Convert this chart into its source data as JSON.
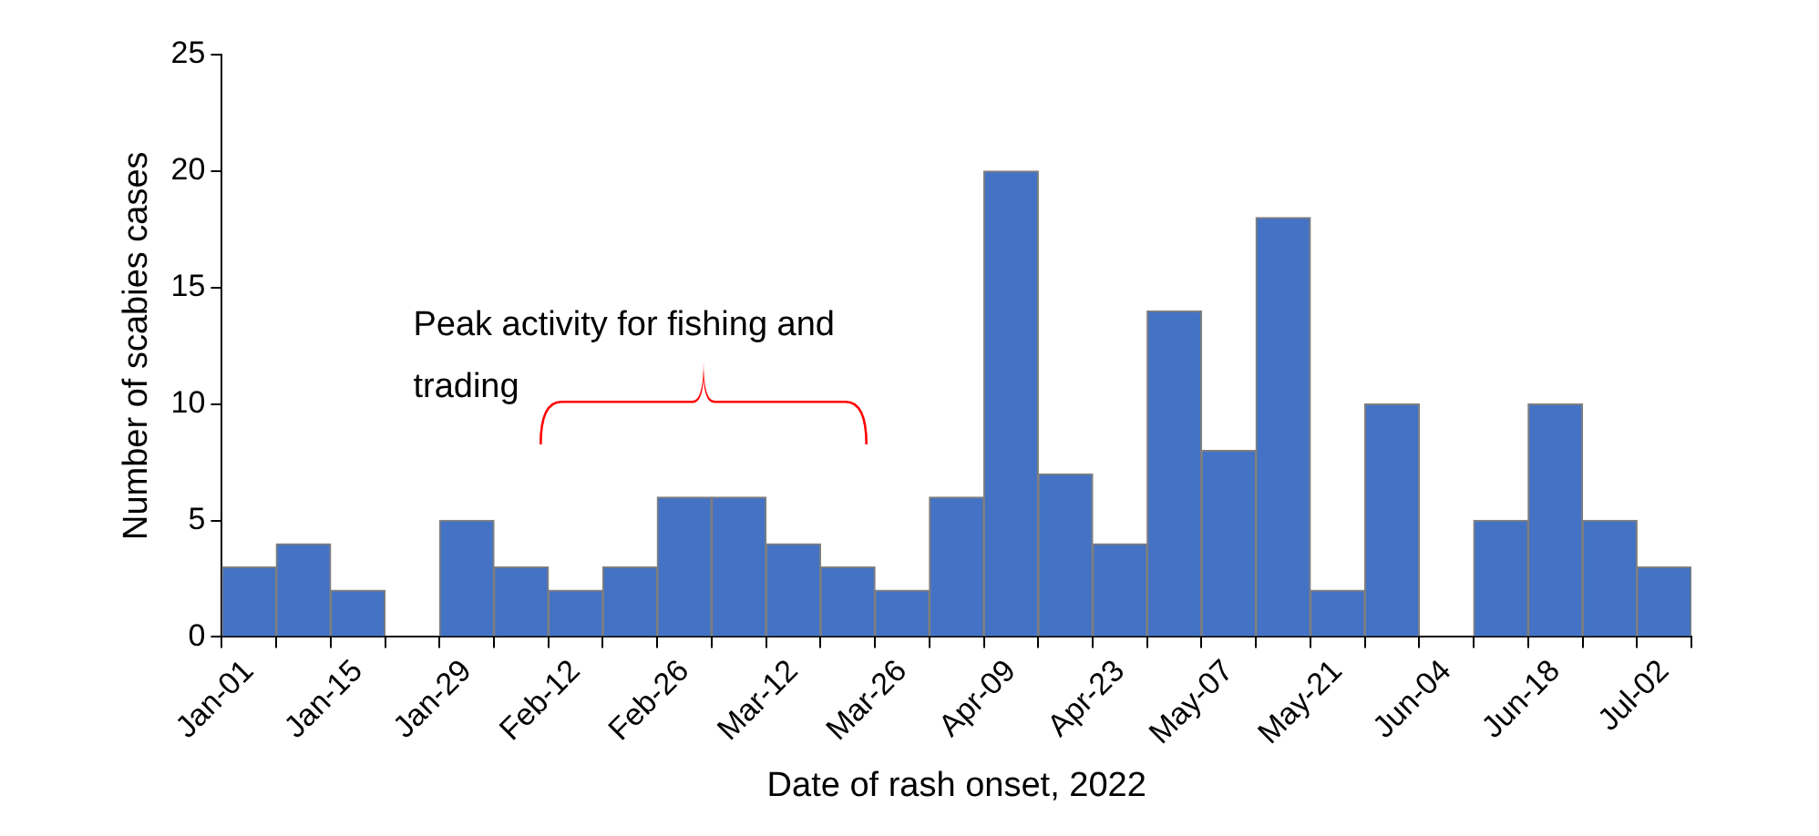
{
  "chart_data": {
    "type": "bar",
    "xlabel": "Date of rash onset, 2022",
    "ylabel": "Number of scabies cases",
    "categories": [
      "Jan-01",
      null,
      "Jan-15",
      null,
      "Jan-29",
      null,
      "Feb-12",
      null,
      "Feb-26",
      null,
      "Mar-12",
      null,
      "Mar-26",
      null,
      "Apr-09",
      null,
      "Apr-23",
      null,
      "May-07",
      null,
      "May-21",
      null,
      "Jun-04",
      null,
      "Jun-18",
      null,
      "Jul-02"
    ],
    "values": [
      3,
      4,
      2,
      0,
      5,
      3,
      2,
      3,
      6,
      6,
      4,
      3,
      2,
      6,
      20,
      7,
      4,
      14,
      8,
      18,
      2,
      10,
      0,
      5,
      10,
      5,
      3
    ],
    "color": "#4472c4",
    "ylim": [
      0,
      25
    ],
    "yticks": [
      0,
      5,
      10,
      15,
      20,
      25
    ],
    "grid": false,
    "legend": false,
    "annotations": [
      "Peak activity for fishing and trading"
    ]
  }
}
